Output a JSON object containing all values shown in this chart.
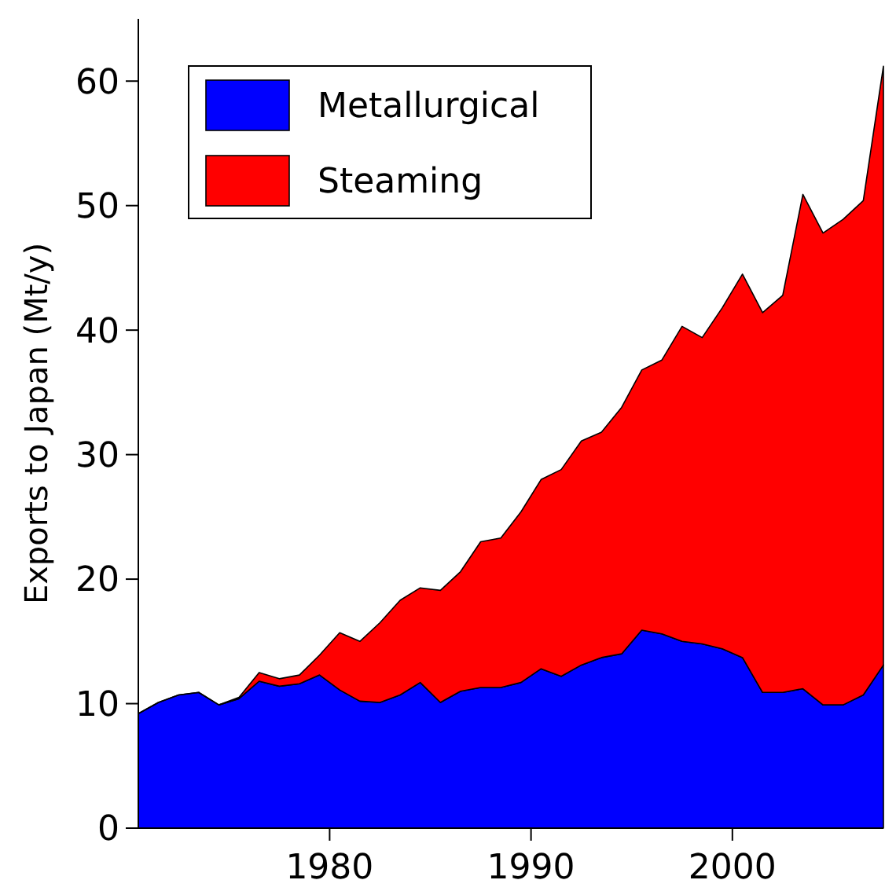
{
  "chart_data": {
    "type": "area",
    "stacked": true,
    "ylabel": "Exports to Japan (Mt/y)",
    "x": [
      1970.5,
      1971.5,
      1972.5,
      1973.5,
      1974.5,
      1975.5,
      1976.5,
      1977.5,
      1978.5,
      1979.5,
      1980.5,
      1981.5,
      1982.5,
      1983.5,
      1984.5,
      1985.5,
      1986.5,
      1987.5,
      1988.5,
      1989.5,
      1990.5,
      1991.5,
      1992.5,
      1993.5,
      1994.5,
      1995.5,
      1996.5,
      1997.5,
      1998.5,
      1999.5,
      2000.5,
      2001.5,
      2002.5,
      2003.5,
      2004.5,
      2005.5,
      2006.5,
      2007.5
    ],
    "series": [
      {
        "name": "Metallurgical",
        "color": "#0000ff",
        "values": [
          9.2,
          10.1,
          10.7,
          10.9,
          9.9,
          10.4,
          11.8,
          11.4,
          11.6,
          12.3,
          11.1,
          10.2,
          10.1,
          10.7,
          11.7,
          10.1,
          11.0,
          11.3,
          11.3,
          11.7,
          12.8,
          12.2,
          13.1,
          13.7,
          14.0,
          15.9,
          15.6,
          15.0,
          14.8,
          14.4,
          13.7,
          10.9,
          10.9,
          11.2,
          9.9,
          9.9,
          10.7,
          13.1
        ]
      },
      {
        "name": "Steaming",
        "color": "#ff0000",
        "values": [
          0,
          0,
          0,
          0,
          0,
          0.1,
          0.7,
          0.6,
          0.7,
          1.6,
          4.6,
          4.8,
          6.4,
          7.6,
          7.6,
          9.0,
          9.6,
          11.7,
          12.0,
          13.7,
          15.2,
          16.6,
          18.0,
          18.1,
          19.8,
          20.9,
          22.0,
          25.3,
          24.6,
          27.4,
          30.8,
          30.5,
          31.9,
          39.7,
          37.9,
          39.0,
          39.7,
          48.1
        ]
      }
    ],
    "xlim": [
      1970.5,
      2007.5
    ],
    "xticks": [
      1980,
      1990,
      2000
    ],
    "ylim": [
      0,
      65
    ],
    "yticks": [
      0,
      10,
      20,
      30,
      40,
      50,
      60
    ],
    "legend": "top left",
    "grid": false
  }
}
